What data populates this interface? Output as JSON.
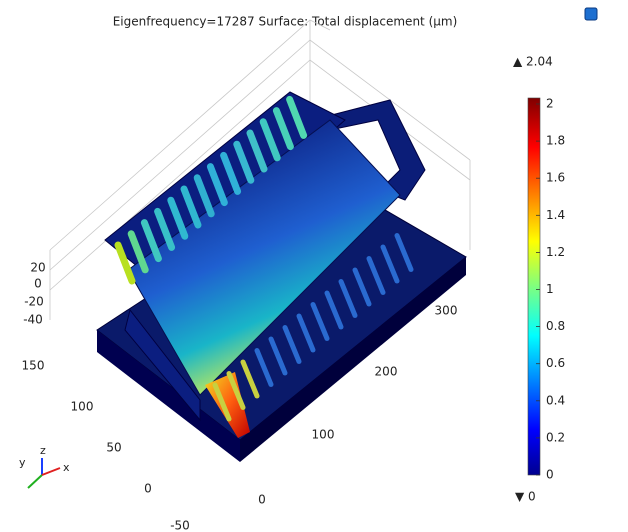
{
  "title": "Eigenfrequency=17287   Surface: Total displacement (µm)",
  "colorbar": {
    "max_label": "▲ 2.04",
    "min_label": "▼ 0",
    "ticks": [
      2,
      1.8,
      1.6,
      1.4,
      1.2,
      1,
      0.8,
      0.6,
      0.4,
      0.2,
      0
    ]
  },
  "axes": {
    "z_ticks": [
      "20",
      "0",
      "-20",
      "-40"
    ],
    "y_ticks": [
      "150",
      "100",
      "50",
      "0",
      "-50"
    ],
    "x_ticks": [
      "0",
      "100",
      "200",
      "300"
    ]
  },
  "triad": [
    "y",
    "z",
    "x"
  ]
}
